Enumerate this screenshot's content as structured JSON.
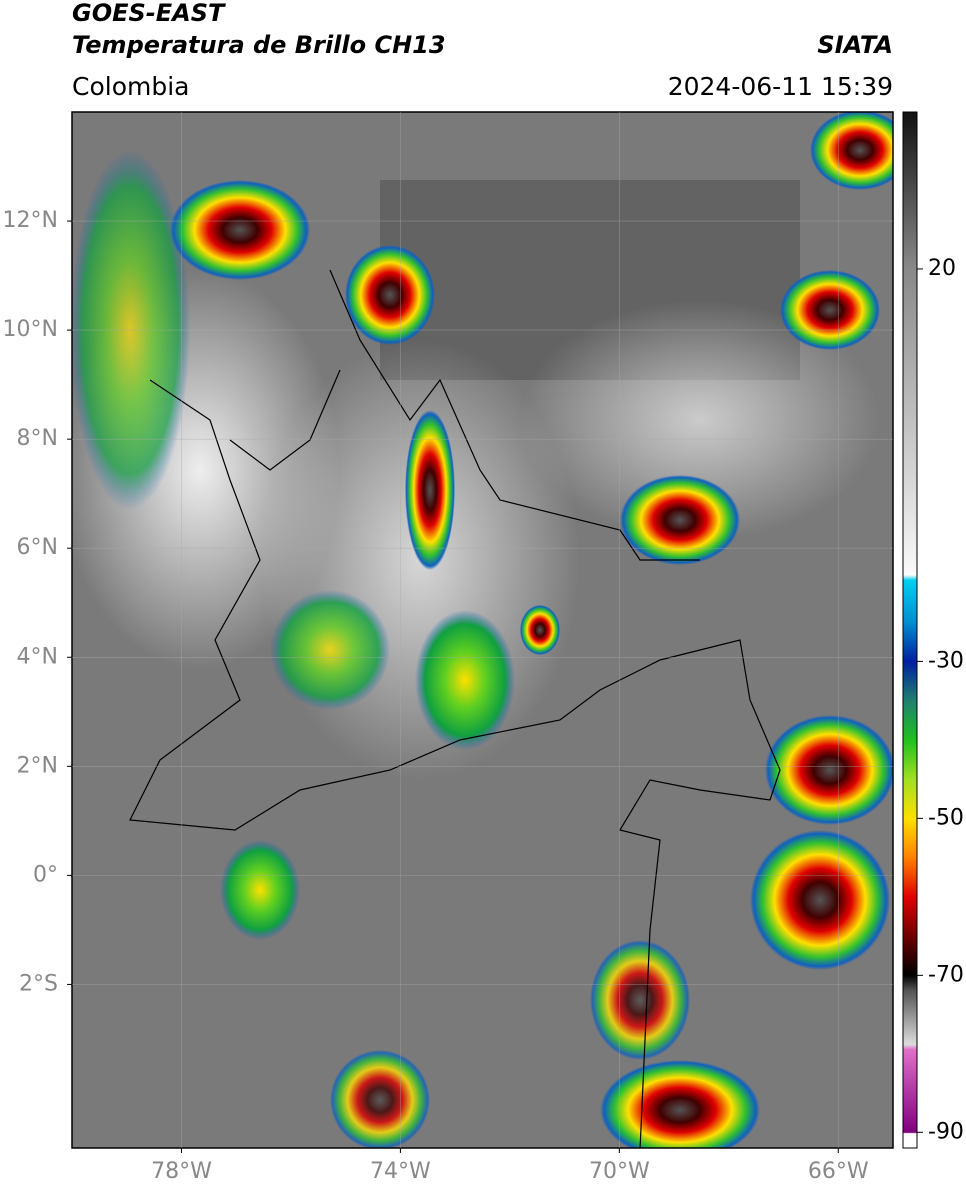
{
  "header": {
    "satellite": "GOES-EAST",
    "product": "Temperatura de Brillo CH13",
    "source": "SIATA",
    "region": "Colombia",
    "datetime": "2024-06-11 15:39"
  },
  "map": {
    "lonlim": [
      -80,
      -65
    ],
    "latlim": [
      -5,
      14
    ],
    "lat_ticks": [
      {
        "value": 12,
        "label": "12°N"
      },
      {
        "value": 10,
        "label": "10°N"
      },
      {
        "value": 8,
        "label": "8°N"
      },
      {
        "value": 6,
        "label": "6°N"
      },
      {
        "value": 4,
        "label": "4°N"
      },
      {
        "value": 2,
        "label": "2°N"
      },
      {
        "value": 0,
        "label": "0°"
      },
      {
        "value": -2,
        "label": "2°S"
      }
    ],
    "lon_ticks": [
      {
        "value": -78,
        "label": "78°W"
      },
      {
        "value": -74,
        "label": "74°W"
      },
      {
        "value": -70,
        "label": "70°W"
      },
      {
        "value": -66,
        "label": "66°W"
      }
    ]
  },
  "colorbar": {
    "lim": [
      -92,
      40
    ],
    "ticks": [
      20,
      -30,
      -50,
      -70,
      -90
    ]
  }
}
